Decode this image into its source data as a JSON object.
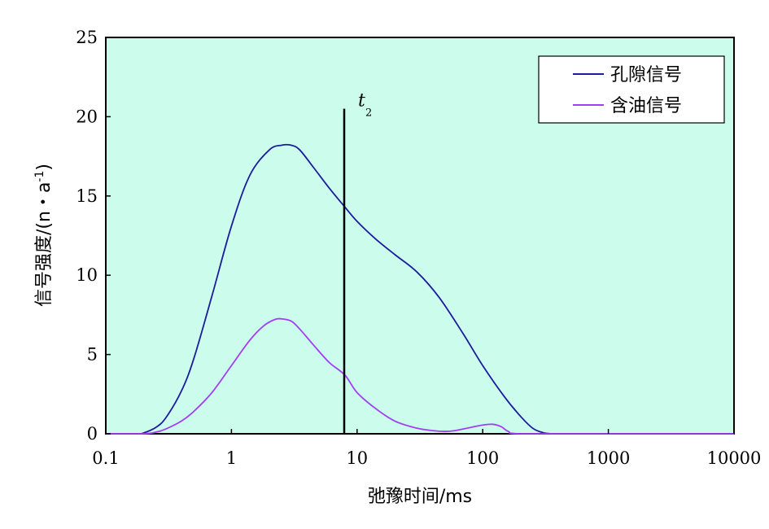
{
  "chart_data": {
    "type": "line",
    "xlabel": "弛豫时间/ms",
    "ylabel_main": "信号强度/(n・a",
    "ylabel_sup": "-1",
    "ylabel_end": ")",
    "xscale": "log",
    "xlim": [
      0.1,
      10000
    ],
    "ylim": [
      0,
      25
    ],
    "x_ticks": [
      0.1,
      1,
      10,
      100,
      1000,
      10000
    ],
    "x_tick_labels": [
      "0.1",
      "1",
      "10",
      "100",
      "1000",
      "10000"
    ],
    "y_ticks": [
      0,
      5,
      10,
      15,
      20,
      25
    ],
    "y_tick_labels": [
      "0",
      "5",
      "10",
      "15",
      "20",
      "25"
    ],
    "plot_background": "#ccfcec",
    "grid": false,
    "legend_position": "top-right",
    "marker_line": {
      "x": 7.9,
      "y_top": 20.5,
      "label": "t",
      "subscript": "2",
      "color": "#000000"
    },
    "series": [
      {
        "name": "孔隙信号",
        "color": "#1c1c9c",
        "x": [
          0.1,
          0.18,
          0.2,
          0.25,
          0.3,
          0.4,
          0.5,
          0.7,
          1.0,
          1.4,
          2.0,
          2.5,
          3.0,
          3.5,
          4.5,
          6.0,
          8.0,
          10.0,
          14.0,
          20.0,
          30.0,
          45.0,
          70.0,
          100.0,
          150.0,
          200.0,
          250.0,
          300.0,
          350.0,
          400.0,
          1000.0,
          10000.0
        ],
        "y": [
          0,
          0,
          0.05,
          0.4,
          1.0,
          2.7,
          4.7,
          8.7,
          13.1,
          16.3,
          17.9,
          18.2,
          18.2,
          17.9,
          16.8,
          15.5,
          14.3,
          13.4,
          12.3,
          11.3,
          10.2,
          8.6,
          6.3,
          4.3,
          2.3,
          1.1,
          0.35,
          0.08,
          0,
          0,
          0,
          0
        ]
      },
      {
        "name": "含油信号",
        "color": "#a040f0",
        "x": [
          0.1,
          0.2,
          0.25,
          0.3,
          0.4,
          0.5,
          0.7,
          1.0,
          1.4,
          1.8,
          2.2,
          2.5,
          3.0,
          3.5,
          4.5,
          6.0,
          8.0,
          10.0,
          14.0,
          20.0,
          30.0,
          40.0,
          50.0,
          60.0,
          80.0,
          100.0,
          120.0,
          140.0,
          160.0,
          200.0,
          1000.0,
          10000.0
        ],
        "y": [
          0,
          0,
          0.1,
          0.3,
          0.8,
          1.4,
          2.6,
          4.3,
          5.9,
          6.8,
          7.2,
          7.25,
          7.1,
          6.6,
          5.6,
          4.5,
          3.7,
          2.6,
          1.6,
          0.8,
          0.35,
          0.2,
          0.15,
          0.2,
          0.4,
          0.55,
          0.6,
          0.45,
          0.15,
          0,
          0,
          0
        ]
      }
    ]
  }
}
